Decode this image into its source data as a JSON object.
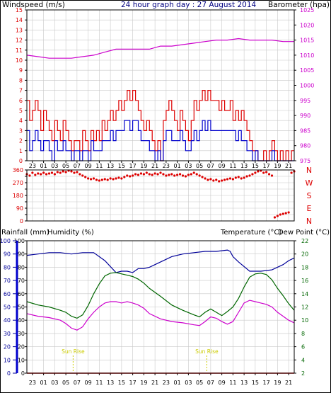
{
  "colors": {
    "wind_avg": "#0000cc",
    "wind_gust": "#dd0000",
    "barometer": "#cc00cc",
    "direction": "#dd0000",
    "rainfall": "#dd0000",
    "humidity": "#000099",
    "temperature": "#006600",
    "dewpoint": "#cc00cc",
    "sun_rise": "#cccc00",
    "grid": "#c8c8c8"
  },
  "header": {
    "windspeed_label": "Windspeed (m/s)",
    "title": "24 hour graph day : 27 August 2014",
    "barometer_label": "Barometer (hpa)"
  },
  "lower_header": {
    "rainfall_label": "Rainfall (mm)",
    "humidity_label": "Humidity (%)",
    "temperature_label": "Temperature (°C)",
    "dewpoint_label": "Dew Point (°C)"
  },
  "x_ticks": [
    "23",
    "01",
    "03",
    "05",
    "07",
    "09",
    "11",
    "13",
    "15",
    "17",
    "19",
    "21",
    "23",
    "01",
    "03",
    "05",
    "07",
    "09",
    "11",
    "13",
    "15",
    "17",
    "19",
    "21",
    "23"
  ],
  "sun_rise_label": "Sun Rise",
  "chart_data": [
    {
      "type": "line",
      "name": "windspeed-barometer",
      "x_unit": "hours from 22:00 (48 h)",
      "xlim": [
        0,
        48
      ],
      "left_axis": {
        "label": "Windspeed (m/s)",
        "ylim": [
          0,
          15
        ],
        "ticks": [
          0,
          1,
          2,
          3,
          4,
          5,
          6,
          7,
          8,
          9,
          10,
          11,
          12,
          13,
          14,
          15
        ]
      },
      "right_axis": {
        "label": "Barometer (hpa)",
        "ylim": [
          975,
          1025
        ],
        "ticks": [
          975,
          980,
          985,
          990,
          995,
          1000,
          1005,
          1010,
          1015,
          1020,
          1025
        ]
      },
      "series": [
        {
          "name": "Barometer",
          "axis": "right",
          "x": [
            0,
            2,
            4,
            6,
            8,
            10,
            12,
            14,
            16,
            18,
            20,
            22,
            24,
            26,
            28,
            30,
            32,
            34,
            36,
            38,
            40,
            42,
            44,
            46,
            48
          ],
          "y": [
            1010,
            1009.5,
            1009,
            1009,
            1009,
            1009.5,
            1010,
            1011,
            1012,
            1012,
            1012,
            1012,
            1013,
            1013,
            1013.5,
            1014,
            1014.5,
            1015,
            1015,
            1015.5,
            1015,
            1015,
            1015,
            1014.5,
            1014.5
          ]
        },
        {
          "name": "Gust",
          "axis": "left",
          "x": [
            0,
            0.5,
            1,
            1.5,
            2,
            2.5,
            3,
            3.5,
            4,
            4.5,
            5,
            5.5,
            6,
            6.5,
            7,
            7.5,
            8,
            8.5,
            9,
            9.5,
            10,
            10.5,
            11,
            11.5,
            12,
            12.5,
            13,
            13.5,
            14,
            14.5,
            15,
            15.5,
            16,
            16.5,
            17,
            17.5,
            18,
            18.5,
            19,
            19.5,
            20,
            20.5,
            21,
            21.5,
            22,
            22.5,
            23,
            23.5,
            24,
            24.5,
            25,
            25.5,
            26,
            26.5,
            27,
            27.5,
            28,
            28.5,
            29,
            29.5,
            30,
            30.5,
            31,
            31.5,
            32,
            32.5,
            33,
            33.5,
            34,
            34.5,
            35,
            35.5,
            36,
            36.5,
            37,
            37.5,
            38,
            38.5,
            39,
            39.5,
            40,
            40.5,
            41,
            41.5,
            42,
            42.5,
            43,
            43.5,
            44,
            44.5,
            45,
            45.5,
            46,
            46.5,
            47,
            47.5,
            48
          ],
          "y": [
            6,
            4,
            5,
            6,
            5,
            3,
            5,
            4,
            3,
            2,
            4,
            3,
            2,
            4,
            3,
            2,
            1,
            2,
            2,
            1,
            3,
            2,
            1,
            3,
            2,
            3,
            2,
            4,
            3,
            4,
            5,
            4,
            5,
            6,
            5,
            6,
            7,
            6,
            7,
            6,
            5,
            4,
            3,
            4,
            3,
            2,
            1,
            2,
            0,
            4,
            5,
            6,
            5,
            4,
            3,
            5,
            4,
            3,
            2,
            4,
            6,
            5,
            6,
            7,
            6,
            7,
            6,
            6,
            6,
            5,
            6,
            5,
            5,
            6,
            4,
            5,
            4,
            5,
            4,
            3,
            2,
            1,
            1,
            0,
            0,
            1,
            0,
            1,
            2,
            1,
            0,
            1,
            0,
            1,
            0,
            1,
            1
          ]
        },
        {
          "name": "Average",
          "axis": "left",
          "x": [
            0,
            0.5,
            1,
            1.5,
            2,
            2.5,
            3,
            3.5,
            4,
            4.5,
            5,
            5.5,
            6,
            6.5,
            7,
            7.5,
            8,
            8.5,
            9,
            9.5,
            10,
            10.5,
            11,
            11.5,
            12,
            12.5,
            13,
            13.5,
            14,
            14.5,
            15,
            15.5,
            16,
            16.5,
            17,
            17.5,
            18,
            18.5,
            19,
            19.5,
            20,
            20.5,
            21,
            21.5,
            22,
            22.5,
            23,
            23.5,
            24,
            24.5,
            25,
            25.5,
            26,
            26.5,
            27,
            27.5,
            28,
            28.5,
            29,
            29.5,
            30,
            30.5,
            31,
            31.5,
            32,
            32.5,
            33,
            33.5,
            34,
            34.5,
            35,
            35.5,
            36,
            36.5,
            37,
            37.5,
            38,
            38.5,
            39,
            39.5,
            40,
            40.5,
            41,
            41.5,
            42,
            42.5,
            43,
            43.5,
            44,
            44.5,
            45,
            45.5,
            46,
            46.5,
            47,
            47.5,
            48
          ],
          "y": [
            3,
            1,
            2,
            3,
            2,
            1,
            2,
            2,
            1,
            0,
            2,
            1,
            1,
            2,
            1,
            1,
            0,
            1,
            1,
            0,
            1,
            1,
            0,
            2,
            1,
            1,
            1,
            2,
            2,
            2,
            3,
            2,
            3,
            3,
            3,
            4,
            4,
            3,
            4,
            4,
            3,
            2,
            2,
            2,
            1,
            1,
            0,
            1,
            0,
            2,
            3,
            3,
            2,
            2,
            2,
            3,
            2,
            1,
            1,
            2,
            3,
            2,
            3,
            4,
            3,
            4,
            3,
            3,
            3,
            3,
            3,
            3,
            3,
            3,
            3,
            2,
            3,
            2,
            2,
            1,
            1,
            0,
            1,
            0,
            0,
            0,
            0,
            0,
            1,
            0,
            0,
            0,
            0,
            0,
            0,
            0,
            0
          ]
        }
      ]
    },
    {
      "type": "scatter",
      "name": "wind-direction",
      "x_unit": "hours from 22:00 (48 h)",
      "xlim": [
        0,
        48
      ],
      "left_axis": {
        "ylim": [
          0,
          360
        ],
        "ticks": [
          0,
          45,
          90,
          135,
          180,
          225,
          270,
          315,
          360
        ]
      },
      "right_labels": [
        "N",
        "W",
        "S",
        "E",
        "N"
      ],
      "series": [
        {
          "name": "Direction",
          "x": [
            0,
            0.5,
            1,
            1.5,
            2,
            2.5,
            3,
            3.5,
            4,
            4.5,
            5,
            5.5,
            6,
            6.5,
            7,
            7.5,
            8,
            8.5,
            9,
            9.5,
            10,
            10.5,
            11,
            11.5,
            12,
            12.5,
            13,
            13.5,
            14,
            14.5,
            15,
            15.5,
            16,
            16.5,
            17,
            17.5,
            18,
            18.5,
            19,
            19.5,
            20,
            20.5,
            21,
            21.5,
            22,
            22.5,
            23,
            23.5,
            24,
            24.5,
            25,
            25.5,
            26,
            26.5,
            27,
            27.5,
            28,
            28.5,
            29,
            29.5,
            30,
            30.5,
            31,
            31.5,
            32,
            32.5,
            33,
            33.5,
            34,
            34.5,
            35,
            35.5,
            36,
            36.5,
            37,
            37.5,
            38,
            38.5,
            39,
            39.5,
            40,
            40.5,
            41,
            41.5,
            42,
            42.5,
            43,
            43.5,
            44,
            44.5,
            45,
            45.5,
            46,
            46.5,
            47,
            47.5,
            48
          ],
          "y": [
            330,
            320,
            340,
            325,
            335,
            330,
            340,
            330,
            335,
            340,
            330,
            345,
            340,
            350,
            345,
            355,
            350,
            340,
            345,
            330,
            320,
            310,
            300,
            295,
            300,
            290,
            285,
            290,
            295,
            290,
            300,
            295,
            300,
            305,
            300,
            310,
            320,
            315,
            320,
            330,
            325,
            335,
            330,
            340,
            330,
            325,
            335,
            330,
            340,
            330,
            320,
            325,
            330,
            320,
            325,
            330,
            320,
            315,
            325,
            330,
            340,
            330,
            320,
            310,
            300,
            290,
            295,
            285,
            290,
            280,
            285,
            290,
            295,
            300,
            295,
            305,
            310,
            300,
            305,
            315,
            320,
            330,
            340,
            350,
            355,
            340,
            345,
            330,
            320,
            25,
            35,
            45,
            50,
            55,
            60,
            340,
            350
          ]
        }
      ]
    },
    {
      "type": "line",
      "name": "rain-humidity-temperature",
      "x_unit": "hours from 22:00 (48 h)",
      "xlim": [
        0,
        48
      ],
      "left_axis": {
        "label": "Rainfall (mm) / Humidity (%)",
        "ylim": [
          0,
          100
        ],
        "ticks": [
          0,
          10,
          20,
          30,
          40,
          50,
          60,
          70,
          80,
          90,
          100
        ]
      },
      "right_axis": {
        "label": "Temperature / Dew Point (°C)",
        "ylim": [
          2,
          22
        ],
        "ticks": [
          2,
          4,
          6,
          8,
          10,
          12,
          14,
          16,
          18,
          20,
          22
        ]
      },
      "series": [
        {
          "name": "Humidity",
          "axis": "left",
          "x": [
            0,
            2,
            4,
            6,
            8,
            10,
            12,
            14,
            16,
            17,
            18,
            19,
            20,
            21,
            22,
            24,
            26,
            28,
            30,
            32,
            34,
            36,
            36.5,
            37,
            38,
            40,
            42,
            44,
            46,
            47,
            48
          ],
          "y": [
            89,
            90,
            91,
            91,
            90,
            91,
            91,
            85,
            76,
            77,
            77,
            76,
            79,
            79,
            80,
            84,
            88,
            90,
            91,
            92,
            92,
            93,
            92,
            88,
            84,
            77,
            77,
            78,
            82,
            85,
            87
          ]
        },
        {
          "name": "Rainfall",
          "axis": "left",
          "x": [
            0,
            48
          ],
          "y": [
            0,
            0
          ]
        },
        {
          "name": "Temperature",
          "axis": "right",
          "x": [
            0,
            2,
            4,
            6,
            7,
            8,
            9,
            10,
            11,
            12,
            13,
            14,
            15,
            16,
            17,
            18,
            19,
            20,
            21,
            22,
            24,
            26,
            28,
            30,
            31,
            32,
            33,
            34,
            35,
            36,
            37,
            38,
            39,
            40,
            41,
            42,
            43,
            44,
            45,
            46,
            47,
            48
          ],
          "y": [
            12.8,
            12.3,
            12.0,
            11.5,
            11.2,
            10.6,
            10.3,
            10.8,
            12.2,
            14.0,
            15.5,
            16.7,
            17.1,
            17.2,
            17.0,
            16.8,
            16.6,
            16.2,
            15.6,
            14.8,
            13.6,
            12.3,
            11.5,
            10.8,
            10.5,
            11.2,
            11.7,
            11.2,
            10.7,
            11.3,
            12.0,
            13.3,
            15.0,
            16.5,
            17.0,
            17.1,
            16.9,
            16.1,
            14.8,
            13.7,
            12.5,
            11.5
          ]
        },
        {
          "name": "Dew Point",
          "axis": "right",
          "x": [
            0,
            2,
            4,
            6,
            7,
            8,
            9,
            10,
            11,
            12,
            13,
            14,
            15,
            16,
            17,
            18,
            19,
            20,
            21,
            22,
            24,
            26,
            28,
            30,
            31,
            32,
            33,
            34,
            35,
            36,
            37,
            38,
            39,
            40,
            41,
            42,
            43,
            44,
            45,
            46,
            47,
            48
          ],
          "y": [
            11.0,
            10.6,
            10.4,
            10.0,
            9.5,
            8.8,
            8.5,
            9.0,
            10.2,
            11.2,
            12.0,
            12.6,
            12.8,
            12.8,
            12.6,
            12.8,
            12.6,
            12.3,
            11.8,
            11.0,
            10.2,
            9.8,
            9.6,
            9.3,
            9.2,
            9.8,
            10.5,
            10.3,
            9.8,
            9.4,
            9.8,
            11.2,
            12.6,
            13.0,
            12.8,
            12.6,
            12.4,
            12.0,
            11.2,
            10.6,
            10.0,
            9.6
          ]
        }
      ]
    }
  ]
}
